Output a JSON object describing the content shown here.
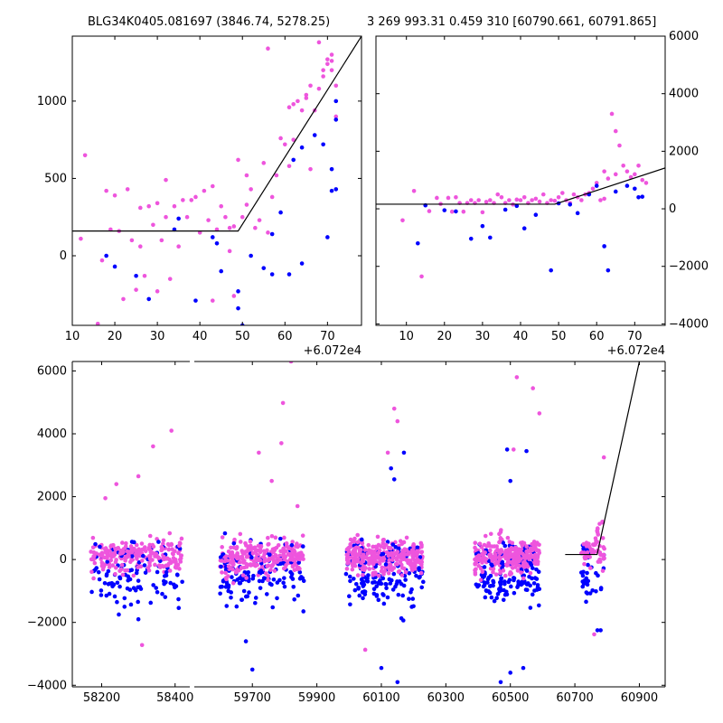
{
  "titles": {
    "left": "BLG34K0405.081697 (3846.74, 5278.25)",
    "right": "3 269 993.31 0.459 310 [60790.661, 60791.865]"
  },
  "colors": {
    "series_a": "#0000ff",
    "series_b": "#ee55dd",
    "model": "#000000"
  },
  "chart_data": [
    {
      "id": "zoom-left",
      "type": "scatter",
      "x_offset_label": "+6.072e4",
      "xlim": [
        10,
        78
      ],
      "ylim": [
        -450,
        1420
      ],
      "xticks": [
        10,
        20,
        30,
        40,
        50,
        60,
        70
      ],
      "yticks": [
        0,
        500,
        1000
      ],
      "xtick_labels": [
        "10",
        "20",
        "30",
        "40",
        "50",
        "60",
        "70"
      ],
      "ytick_labels": [
        "0",
        "500",
        "1000"
      ],
      "y_axis_side": "left",
      "model_line": [
        [
          10,
          160
        ],
        [
          49,
          160
        ],
        [
          78,
          1420
        ]
      ],
      "series": [
        {
          "points": [
            [
              18,
              0
            ],
            [
              20,
              -70
            ],
            [
              25,
              -130
            ],
            [
              28,
              -280
            ],
            [
              34,
              170
            ],
            [
              35,
              240
            ],
            [
              39,
              -290
            ],
            [
              43,
              120
            ],
            [
              44,
              80
            ],
            [
              45,
              -100
            ],
            [
              49,
              -230
            ],
            [
              49,
              -340
            ],
            [
              50,
              -450
            ],
            [
              52,
              0
            ],
            [
              55,
              -80
            ],
            [
              57,
              140
            ],
            [
              57,
              -120
            ],
            [
              59,
              280
            ],
            [
              61,
              -120
            ],
            [
              62,
              620
            ],
            [
              64,
              700
            ],
            [
              64,
              -50
            ],
            [
              67,
              780
            ],
            [
              70,
              120
            ],
            [
              71,
              420
            ],
            [
              72,
              1000
            ],
            [
              72,
              880
            ],
            [
              71,
              560
            ],
            [
              72,
              430
            ],
            [
              69,
              720
            ]
          ]
        },
        {
          "points": [
            [
              12,
              110
            ],
            [
              13,
              650
            ],
            [
              16,
              -440
            ],
            [
              17,
              -30
            ],
            [
              18,
              420
            ],
            [
              19,
              170
            ],
            [
              20,
              390
            ],
            [
              21,
              160
            ],
            [
              22,
              -280
            ],
            [
              23,
              430
            ],
            [
              24,
              100
            ],
            [
              25,
              -220
            ],
            [
              26,
              60
            ],
            [
              26,
              310
            ],
            [
              27,
              -130
            ],
            [
              28,
              320
            ],
            [
              29,
              200
            ],
            [
              30,
              -230
            ],
            [
              30,
              340
            ],
            [
              31,
              100
            ],
            [
              32,
              250
            ],
            [
              32,
              490
            ],
            [
              33,
              -150
            ],
            [
              34,
              320
            ],
            [
              35,
              60
            ],
            [
              36,
              360
            ],
            [
              37,
              250
            ],
            [
              38,
              360
            ],
            [
              39,
              380
            ],
            [
              40,
              150
            ],
            [
              41,
              420
            ],
            [
              42,
              230
            ],
            [
              43,
              -290
            ],
            [
              43,
              450
            ],
            [
              44,
              170
            ],
            [
              45,
              320
            ],
            [
              46,
              250
            ],
            [
              47,
              30
            ],
            [
              47,
              180
            ],
            [
              48,
              -260
            ],
            [
              48,
              190
            ],
            [
              49,
              620
            ],
            [
              50,
              250
            ],
            [
              51,
              330
            ],
            [
              51,
              520
            ],
            [
              52,
              430
            ],
            [
              53,
              180
            ],
            [
              54,
              230
            ],
            [
              55,
              600
            ],
            [
              56,
              1340
            ],
            [
              56,
              150
            ],
            [
              57,
              380
            ],
            [
              58,
              520
            ],
            [
              59,
              760
            ],
            [
              60,
              720
            ],
            [
              61,
              960
            ],
            [
              61,
              580
            ],
            [
              62,
              980
            ],
            [
              62,
              750
            ],
            [
              63,
              1000
            ],
            [
              64,
              940
            ],
            [
              65,
              1020
            ],
            [
              65,
              1040
            ],
            [
              66,
              560
            ],
            [
              66,
              1100
            ],
            [
              67,
              940
            ],
            [
              68,
              1080
            ],
            [
              68,
              1380
            ],
            [
              69,
              1160
            ],
            [
              69,
              1200
            ],
            [
              70,
              1240
            ],
            [
              70,
              1270
            ],
            [
              71,
              1200
            ],
            [
              71,
              1260
            ],
            [
              71,
              1300
            ],
            [
              72,
              900
            ],
            [
              72,
              1100
            ]
          ]
        }
      ]
    },
    {
      "id": "zoom-right",
      "type": "scatter",
      "x_offset_label": "+6.072e4",
      "xlim": [
        2,
        78
      ],
      "ylim": [
        -4050,
        6000
      ],
      "xticks": [
        10,
        20,
        30,
        40,
        50,
        60,
        70
      ],
      "yticks": [
        -4000,
        -2000,
        0,
        2000,
        4000,
        6000
      ],
      "xtick_labels": [
        "10",
        "20",
        "30",
        "40",
        "50",
        "60",
        "70"
      ],
      "ytick_labels": [
        "−4000",
        "−2000",
        "0",
        "2000",
        "4000",
        "6000"
      ],
      "y_axis_side": "right",
      "model_line": [
        [
          2,
          160
        ],
        [
          49,
          160
        ],
        [
          78,
          1420
        ]
      ],
      "series": [
        {
          "points": [
            [
              13,
              -1200
            ],
            [
              15,
              120
            ],
            [
              20,
              -50
            ],
            [
              23,
              -90
            ],
            [
              27,
              -1040
            ],
            [
              30,
              -600
            ],
            [
              32,
              -1000
            ],
            [
              36,
              -30
            ],
            [
              39,
              100
            ],
            [
              41,
              -680
            ],
            [
              44,
              -210
            ],
            [
              48,
              -2140
            ],
            [
              50,
              190
            ],
            [
              53,
              150
            ],
            [
              55,
              -150
            ],
            [
              58,
              500
            ],
            [
              60,
              800
            ],
            [
              62,
              -1300
            ],
            [
              63,
              -2140
            ],
            [
              65,
              600
            ],
            [
              68,
              800
            ],
            [
              70,
              700
            ],
            [
              71,
              400
            ],
            [
              72,
              420
            ]
          ]
        },
        {
          "points": [
            [
              9,
              -400
            ],
            [
              12,
              620
            ],
            [
              14,
              -2350
            ],
            [
              16,
              -80
            ],
            [
              18,
              380
            ],
            [
              19,
              170
            ],
            [
              21,
              380
            ],
            [
              22,
              -100
            ],
            [
              23,
              400
            ],
            [
              24,
              200
            ],
            [
              25,
              -100
            ],
            [
              26,
              200
            ],
            [
              27,
              300
            ],
            [
              28,
              200
            ],
            [
              29,
              300
            ],
            [
              30,
              -120
            ],
            [
              31,
              240
            ],
            [
              32,
              300
            ],
            [
              33,
              200
            ],
            [
              34,
              500
            ],
            [
              35,
              400
            ],
            [
              36,
              200
            ],
            [
              37,
              300
            ],
            [
              38,
              150
            ],
            [
              39,
              320
            ],
            [
              40,
              300
            ],
            [
              41,
              400
            ],
            [
              42,
              200
            ],
            [
              43,
              300
            ],
            [
              44,
              350
            ],
            [
              45,
              250
            ],
            [
              46,
              500
            ],
            [
              47,
              200
            ],
            [
              48,
              300
            ],
            [
              49,
              280
            ],
            [
              50,
              400
            ],
            [
              51,
              550
            ],
            [
              52,
              300
            ],
            [
              53,
              200
            ],
            [
              54,
              500
            ],
            [
              55,
              400
            ],
            [
              56,
              300
            ],
            [
              57,
              500
            ],
            [
              58,
              550
            ],
            [
              59,
              700
            ],
            [
              60,
              900
            ],
            [
              61,
              300
            ],
            [
              62,
              1300
            ],
            [
              62,
              350
            ],
            [
              63,
              1050
            ],
            [
              64,
              3300
            ],
            [
              65,
              2700
            ],
            [
              65,
              1200
            ],
            [
              66,
              2200
            ],
            [
              67,
              1500
            ],
            [
              68,
              1300
            ],
            [
              69,
              1100
            ],
            [
              70,
              1200
            ],
            [
              71,
              1500
            ],
            [
              72,
              1000
            ],
            [
              73,
              900
            ]
          ]
        }
      ]
    },
    {
      "id": "full-timeline",
      "type": "scatter",
      "ylim": [
        -4050,
        6300
      ],
      "yticks": [
        -4000,
        -2000,
        0,
        2000,
        4000,
        6000
      ],
      "ytick_labels": [
        "−4000",
        "−2000",
        "0",
        "2000",
        "4000",
        "6000"
      ],
      "y_axis_side": "left",
      "segments": [
        {
          "xlim": [
            58120,
            58440
          ],
          "xticks": [
            58200,
            58400
          ],
          "xtick_labels": [
            "58200",
            "58400"
          ]
        },
        {
          "xlim": [
            59520,
            60980
          ],
          "xticks": [
            59700,
            59900,
            60100,
            60300,
            60500,
            60700,
            60900
          ],
          "xtick_labels": [
            "59700",
            "59900",
            "60100",
            "60300",
            "60500",
            "60700",
            "60900"
          ]
        }
      ],
      "clusters": [
        {
          "x_range": [
            58170,
            58420
          ],
          "main_rows": 70
        },
        {
          "x_range": [
            59600,
            59860
          ],
          "main_rows": 85
        },
        {
          "x_range": [
            59990,
            60230
          ],
          "main_rows": 95
        },
        {
          "x_range": [
            60390,
            60590
          ],
          "main_rows": 90
        },
        {
          "x_range": [
            60720,
            60792
          ],
          "main_rows": 22
        }
      ],
      "model_line": [
        [
          60670,
          160
        ],
        [
          60769,
          160
        ],
        [
          60900,
          6300
        ]
      ],
      "outliers": {
        "series_b": [
          [
            58390,
            4100
          ],
          [
            58340,
            3600
          ],
          [
            58300,
            2650
          ],
          [
            58240,
            2400
          ],
          [
            58210,
            1950
          ],
          [
            59720,
            3400
          ],
          [
            59790,
            3700
          ],
          [
            59795,
            4980
          ],
          [
            59820,
            6300
          ],
          [
            59760,
            2500
          ],
          [
            59840,
            1700
          ],
          [
            60140,
            4800
          ],
          [
            60150,
            4400
          ],
          [
            60120,
            3400
          ],
          [
            60520,
            5800
          ],
          [
            60570,
            5450
          ],
          [
            60590,
            4650
          ],
          [
            60510,
            3500
          ],
          [
            60790,
            3250
          ],
          [
            60760,
            -2380
          ],
          [
            58310,
            -2720
          ],
          [
            60050,
            -2870
          ]
        ],
        "series_a": [
          [
            60170,
            3400
          ],
          [
            60130,
            2900
          ],
          [
            60140,
            2550
          ],
          [
            60550,
            3450
          ],
          [
            60490,
            3500
          ],
          [
            60500,
            2500
          ],
          [
            59680,
            -2600
          ],
          [
            59700,
            -3500
          ],
          [
            60100,
            -3450
          ],
          [
            60150,
            -3900
          ],
          [
            60470,
            -3900
          ],
          [
            60500,
            -3600
          ],
          [
            60540,
            -3450
          ],
          [
            60770,
            -2250
          ],
          [
            60780,
            -2250
          ],
          [
            58300,
            -1900
          ]
        ]
      }
    }
  ]
}
